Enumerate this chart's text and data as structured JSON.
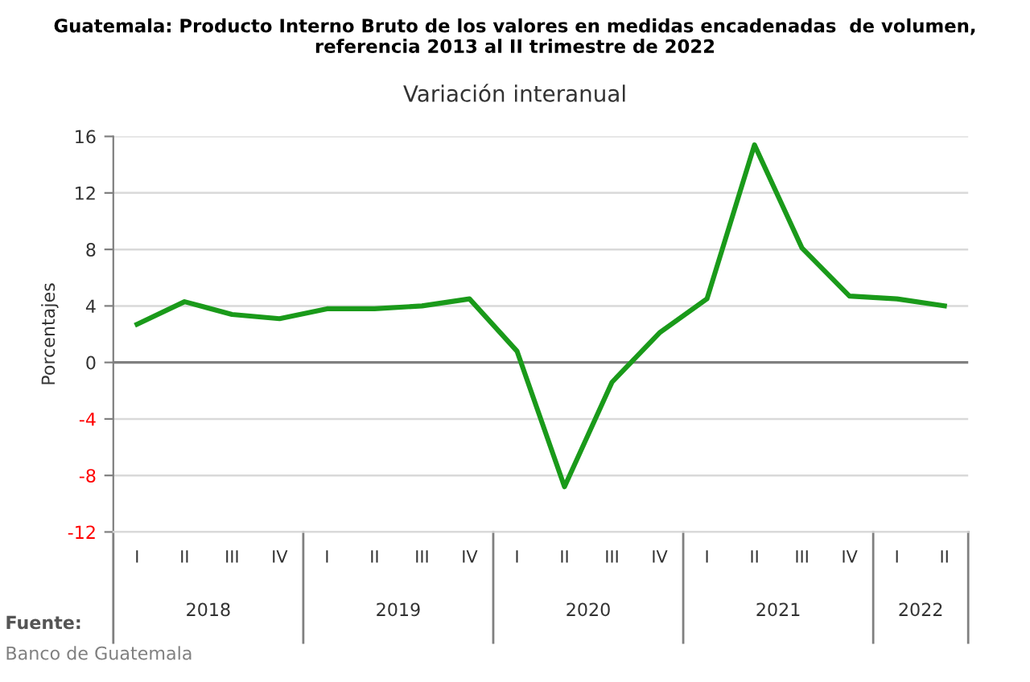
{
  "chart_data": {
    "type": "line",
    "title": "Guatemala: Producto Interno Bruto de los valores en medidas encadenadas  de volumen, referencia 2013 al II trimestre de 2022",
    "subtitle": "Variación interanual",
    "ylabel": "Porcentajes",
    "categories": [
      "I",
      "II",
      "III",
      "IV",
      "I",
      "II",
      "III",
      "IV",
      "I",
      "II",
      "III",
      "IV",
      "I",
      "II",
      "III",
      "IV",
      "I",
      "II"
    ],
    "series": [
      {
        "color": "#1a9a1a",
        "values": [
          2.7,
          4.3,
          3.4,
          3.1,
          3.8,
          3.8,
          4.0,
          4.5,
          0.8,
          -8.8,
          -1.4,
          2.1,
          4.5,
          15.4,
          8.1,
          4.7,
          4.5,
          4.0
        ]
      }
    ],
    "ylim": [
      -12,
      16
    ],
    "yticks": [
      -12,
      -8,
      -4,
      0,
      4,
      8,
      12,
      16
    ],
    "grid": "y",
    "ref_lines": [
      {
        "axis": "y",
        "value": 0,
        "color": "#808080"
      }
    ],
    "annotations": [
      "2018",
      "2019",
      "2020",
      "2021",
      "2022",
      "Fuente:",
      "Banco de Guatemala"
    ]
  }
}
